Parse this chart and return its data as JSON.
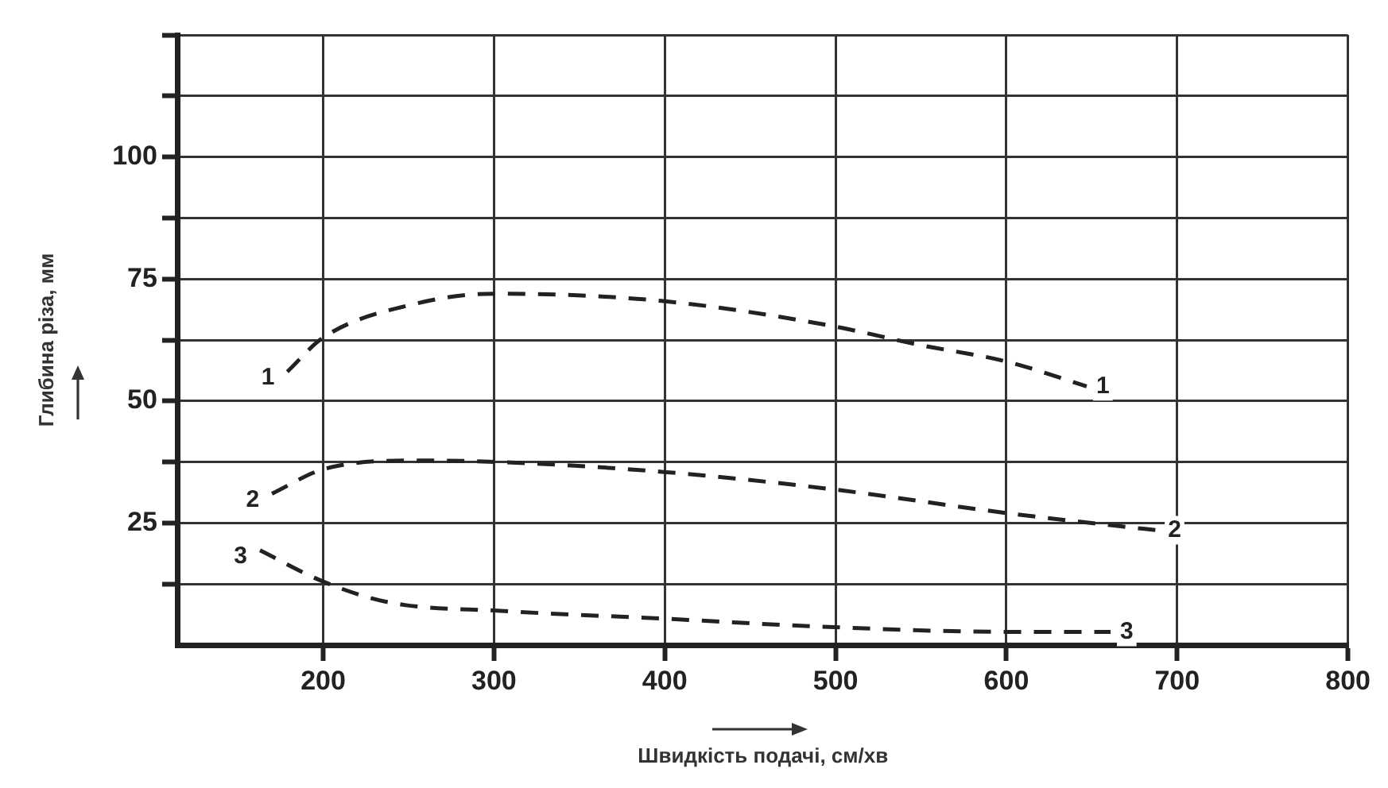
{
  "chart_data": {
    "type": "line",
    "xlabel": "Швидкість подачі, см/хв",
    "ylabel": "Глибина різа, мм",
    "xlim": [
      115,
      800
    ],
    "xticks": [
      200,
      300,
      400,
      500,
      600,
      700,
      800
    ],
    "ylim": [
      0,
      125
    ],
    "yticks": [
      {
        "value": 12.5,
        "label": null
      },
      25,
      {
        "value": 37.5,
        "label": null
      },
      50,
      {
        "value": 62.5,
        "label": null
      },
      75,
      {
        "value": 87.5,
        "label": null
      },
      100,
      {
        "value": 112.5,
        "label": null
      },
      {
        "value": 125,
        "label": null
      }
    ],
    "grid": true,
    "legend": false,
    "marker": "none",
    "line_style": "dashed",
    "series": [
      {
        "name": "1",
        "color": "#222222",
        "x": [
          179,
          200,
          255,
          301,
          398,
          496,
          549,
          601,
          647
        ],
        "values": [
          56,
          63,
          70,
          72,
          70.5,
          65.5,
          61.5,
          58,
          53
        ]
      },
      {
        "name": "2",
        "color": "#222222",
        "x": [
          170,
          200,
          255,
          303,
          398,
          496,
          601,
          665,
          689
        ],
        "values": [
          31,
          36,
          37.8,
          37.5,
          35.5,
          32,
          27,
          24.4,
          23.5
        ]
      },
      {
        "name": "3",
        "color": "#222222",
        "x": [
          163,
          200,
          239,
          304,
          399,
          496,
          601,
          661
        ],
        "values": [
          19.4,
          13,
          8.7,
          7,
          5.4,
          3.7,
          2.7,
          2.7
        ]
      }
    ]
  }
}
